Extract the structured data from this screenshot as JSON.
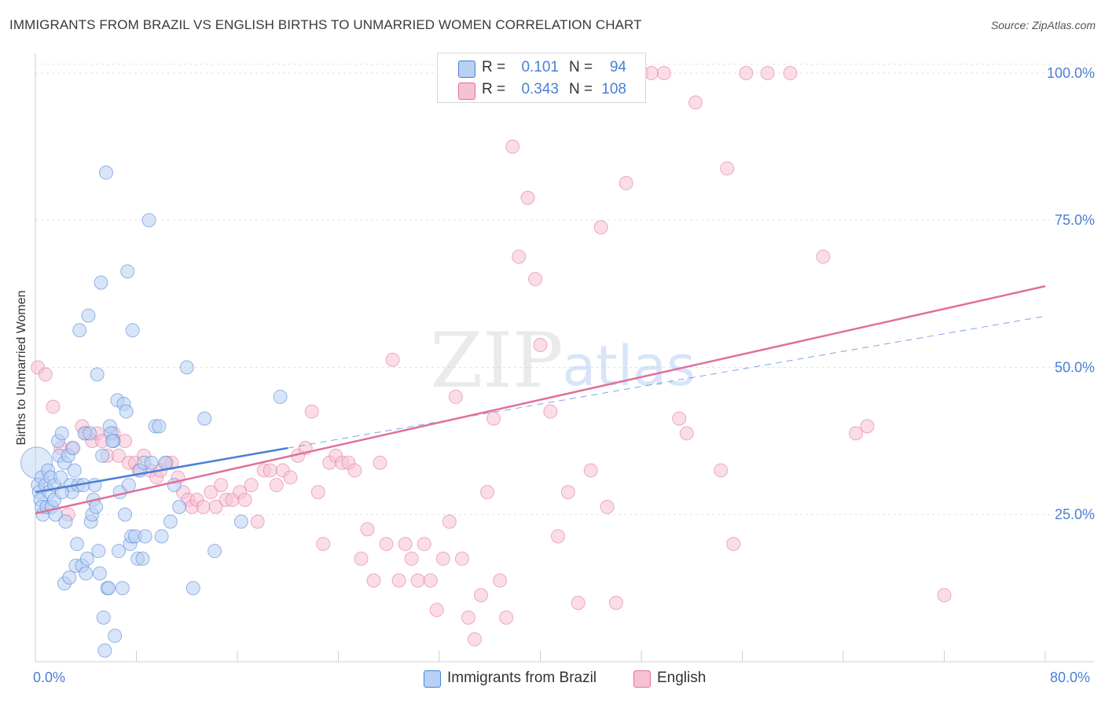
{
  "title": "IMMIGRANTS FROM BRAZIL VS ENGLISH BIRTHS TO UNMARRIED WOMEN CORRELATION CHART",
  "source": "Source: ZipAtlas.com",
  "watermark": {
    "zip": "ZIP",
    "atlas": "atlas"
  },
  "legend": {
    "rows": [
      {
        "r_label": "R =",
        "r_value": "0.101",
        "n_label": "N =",
        "n_value": "94"
      },
      {
        "r_label": "R =",
        "r_value": "0.343",
        "n_label": "N =",
        "n_value": "108"
      }
    ]
  },
  "x_tick_labels": {
    "left": "0.0%",
    "right": "80.0%"
  },
  "colors": {
    "blue": "#4a7fd6",
    "blue_fill": "#b8d0f2",
    "pink": "#e0709a",
    "pink_fill": "#f6c1d3",
    "tick_text": "#4a7fd6"
  },
  "chart_data": {
    "type": "scatter",
    "title": "IMMIGRANTS FROM BRAZIL VS ENGLISH BIRTHS TO UNMARRIED WOMEN CORRELATION CHART",
    "xlabel": "",
    "ylabel": "Births to Unmarried Women",
    "xlim": [
      0,
      80
    ],
    "ylim": [
      0,
      102
    ],
    "y_ticks": [
      25,
      50,
      75,
      100
    ],
    "y_tick_labels": [
      "25.0%",
      "50.0%",
      "75.0%",
      "100.0%"
    ],
    "x_tick_labels": [
      "0.0%",
      "80.0%"
    ],
    "grid": true,
    "legend_position": "top-center",
    "series": [
      {
        "name": "Immigrants from Brazil",
        "color": "#4a7fd6",
        "r": 0.101,
        "n": 94,
        "trend": {
          "x": [
            0,
            20
          ],
          "y": [
            28.8,
            36.3
          ]
        },
        "trend_extended": {
          "x": [
            20,
            80
          ],
          "y": [
            36.3,
            58.7
          ]
        },
        "points": [
          [
            0.1,
            33.8
          ],
          [
            0.2,
            30.0
          ],
          [
            0.3,
            28.8
          ],
          [
            0.4,
            27.5
          ],
          [
            0.5,
            26.3
          ],
          [
            0.5,
            31.3
          ],
          [
            0.6,
            25.0
          ],
          [
            0.8,
            30.0
          ],
          [
            0.9,
            26.3
          ],
          [
            1.0,
            32.5
          ],
          [
            1.1,
            28.8
          ],
          [
            1.2,
            31.3
          ],
          [
            1.3,
            26.3
          ],
          [
            1.5,
            30.0
          ],
          [
            1.5,
            27.5
          ],
          [
            1.6,
            25.0
          ],
          [
            1.8,
            37.5
          ],
          [
            1.9,
            35.0
          ],
          [
            2.0,
            31.3
          ],
          [
            2.1,
            38.8
          ],
          [
            2.3,
            13.3
          ],
          [
            2.3,
            33.8
          ],
          [
            2.4,
            23.8
          ],
          [
            2.6,
            35.0
          ],
          [
            2.7,
            14.3
          ],
          [
            2.8,
            30.0
          ],
          [
            2.9,
            28.8
          ],
          [
            3.0,
            36.3
          ],
          [
            3.1,
            32.5
          ],
          [
            3.2,
            16.3
          ],
          [
            3.3,
            20.0
          ],
          [
            3.4,
            30.0
          ],
          [
            3.5,
            56.3
          ],
          [
            3.7,
            16.3
          ],
          [
            3.8,
            30.0
          ],
          [
            3.9,
            38.8
          ],
          [
            4.0,
            15.0
          ],
          [
            4.1,
            17.5
          ],
          [
            4.2,
            58.8
          ],
          [
            4.3,
            38.8
          ],
          [
            4.4,
            23.8
          ],
          [
            4.5,
            25.0
          ],
          [
            4.6,
            27.5
          ],
          [
            4.7,
            30.0
          ],
          [
            4.8,
            26.3
          ],
          [
            4.9,
            48.8
          ],
          [
            5.0,
            18.8
          ],
          [
            5.1,
            15.0
          ],
          [
            5.2,
            64.4
          ],
          [
            5.3,
            35.0
          ],
          [
            5.4,
            7.5
          ],
          [
            5.5,
            1.9
          ],
          [
            5.6,
            83.1
          ],
          [
            5.7,
            12.5
          ],
          [
            5.8,
            12.5
          ],
          [
            5.9,
            40.0
          ],
          [
            6.0,
            38.8
          ],
          [
            6.2,
            37.5
          ],
          [
            6.3,
            4.4
          ],
          [
            6.5,
            44.4
          ],
          [
            6.6,
            18.8
          ],
          [
            6.7,
            28.8
          ],
          [
            6.9,
            12.5
          ],
          [
            7.0,
            43.8
          ],
          [
            7.1,
            25.0
          ],
          [
            7.2,
            42.5
          ],
          [
            7.3,
            66.3
          ],
          [
            7.4,
            30.0
          ],
          [
            7.5,
            20.0
          ],
          [
            7.6,
            21.3
          ],
          [
            7.7,
            56.3
          ],
          [
            7.9,
            21.3
          ],
          [
            8.1,
            17.5
          ],
          [
            8.3,
            32.5
          ],
          [
            8.5,
            17.5
          ],
          [
            8.6,
            33.8
          ],
          [
            8.7,
            21.3
          ],
          [
            9.0,
            75.0
          ],
          [
            9.2,
            33.8
          ],
          [
            9.5,
            40.0
          ],
          [
            9.8,
            40.0
          ],
          [
            10.0,
            21.3
          ],
          [
            10.3,
            33.8
          ],
          [
            10.7,
            23.8
          ],
          [
            11.0,
            30.0
          ],
          [
            11.4,
            26.3
          ],
          [
            12.0,
            50.0
          ],
          [
            12.5,
            12.5
          ],
          [
            13.4,
            41.3
          ],
          [
            14.2,
            18.8
          ],
          [
            16.3,
            23.8
          ],
          [
            19.4,
            45.0
          ],
          [
            6.1,
            37.5
          ],
          [
            2.1,
            28.8
          ]
        ]
      },
      {
        "name": "English",
        "color": "#e0709a",
        "r": 0.343,
        "n": 108,
        "trend": {
          "x": [
            0,
            80
          ],
          "y": [
            25.2,
            63.8
          ]
        },
        "points": [
          [
            0.2,
            50.0
          ],
          [
            0.8,
            48.8
          ],
          [
            1.4,
            43.3
          ],
          [
            2.0,
            36.3
          ],
          [
            2.6,
            25.0
          ],
          [
            2.9,
            36.3
          ],
          [
            3.7,
            40.0
          ],
          [
            4.0,
            38.8
          ],
          [
            4.5,
            37.5
          ],
          [
            4.9,
            38.8
          ],
          [
            5.3,
            37.5
          ],
          [
            5.7,
            35.0
          ],
          [
            6.2,
            38.8
          ],
          [
            6.6,
            35.0
          ],
          [
            7.1,
            37.5
          ],
          [
            7.4,
            33.8
          ],
          [
            7.9,
            33.8
          ],
          [
            8.2,
            32.5
          ],
          [
            8.6,
            35.0
          ],
          [
            9.1,
            32.5
          ],
          [
            9.6,
            31.3
          ],
          [
            9.9,
            32.5
          ],
          [
            10.4,
            33.8
          ],
          [
            10.8,
            33.8
          ],
          [
            11.3,
            31.3
          ],
          [
            11.7,
            28.8
          ],
          [
            12.1,
            27.5
          ],
          [
            12.4,
            26.3
          ],
          [
            12.8,
            27.5
          ],
          [
            13.3,
            26.3
          ],
          [
            13.9,
            28.8
          ],
          [
            14.3,
            26.3
          ],
          [
            14.7,
            30.0
          ],
          [
            15.1,
            27.5
          ],
          [
            15.6,
            27.5
          ],
          [
            16.2,
            28.8
          ],
          [
            16.6,
            27.5
          ],
          [
            17.1,
            30.0
          ],
          [
            17.6,
            23.8
          ],
          [
            18.1,
            32.5
          ],
          [
            18.6,
            32.5
          ],
          [
            19.1,
            30.0
          ],
          [
            19.6,
            32.5
          ],
          [
            20.2,
            31.3
          ],
          [
            20.8,
            35.0
          ],
          [
            21.4,
            36.3
          ],
          [
            21.9,
            42.5
          ],
          [
            22.4,
            28.8
          ],
          [
            22.8,
            20.0
          ],
          [
            23.3,
            33.8
          ],
          [
            23.8,
            35.0
          ],
          [
            24.3,
            33.8
          ],
          [
            24.8,
            33.8
          ],
          [
            25.3,
            32.5
          ],
          [
            25.8,
            17.5
          ],
          [
            26.3,
            22.5
          ],
          [
            26.8,
            13.8
          ],
          [
            27.3,
            33.8
          ],
          [
            27.8,
            20.0
          ],
          [
            28.3,
            51.3
          ],
          [
            28.8,
            13.8
          ],
          [
            29.3,
            20.0
          ],
          [
            29.8,
            17.5
          ],
          [
            30.3,
            13.8
          ],
          [
            30.8,
            20.0
          ],
          [
            31.3,
            13.8
          ],
          [
            31.8,
            8.8
          ],
          [
            32.3,
            17.5
          ],
          [
            32.8,
            23.8
          ],
          [
            33.3,
            45.0
          ],
          [
            33.8,
            17.5
          ],
          [
            34.3,
            7.5
          ],
          [
            34.8,
            3.8
          ],
          [
            35.3,
            11.3
          ],
          [
            35.8,
            28.8
          ],
          [
            36.3,
            41.3
          ],
          [
            36.8,
            13.8
          ],
          [
            37.3,
            7.5
          ],
          [
            37.8,
            87.5
          ],
          [
            38.3,
            68.8
          ],
          [
            39.0,
            78.8
          ],
          [
            39.6,
            65.0
          ],
          [
            40.0,
            53.8
          ],
          [
            40.8,
            42.5
          ],
          [
            41.4,
            21.3
          ],
          [
            42.2,
            28.8
          ],
          [
            43.0,
            10.0
          ],
          [
            44.0,
            32.5
          ],
          [
            44.8,
            73.8
          ],
          [
            45.3,
            26.3
          ],
          [
            46.0,
            10.0
          ],
          [
            46.8,
            81.3
          ],
          [
            48.0,
            100.0
          ],
          [
            48.8,
            100.0
          ],
          [
            49.8,
            100.0
          ],
          [
            51.0,
            41.3
          ],
          [
            51.6,
            38.8
          ],
          [
            52.3,
            95.0
          ],
          [
            54.3,
            32.5
          ],
          [
            54.8,
            83.8
          ],
          [
            55.3,
            20.0
          ],
          [
            56.3,
            100.0
          ],
          [
            58.0,
            100.0
          ],
          [
            59.8,
            100.0
          ],
          [
            62.4,
            68.8
          ],
          [
            65.0,
            38.8
          ],
          [
            65.9,
            40.0
          ],
          [
            72.0,
            11.3
          ]
        ]
      }
    ]
  },
  "bottom_legend": [
    "Immigrants from Brazil",
    "English"
  ]
}
